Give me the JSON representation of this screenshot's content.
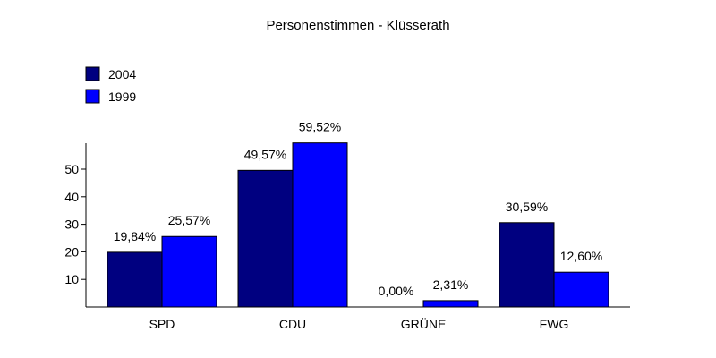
{
  "chart_data": {
    "type": "bar",
    "title": "Personenstimmen - Klüsserath",
    "categories": [
      "SPD",
      "CDU",
      "GRÜNE",
      "FWG"
    ],
    "series": [
      {
        "name": "2004",
        "color": "#000080",
        "values": [
          19.84,
          49.57,
          0.0,
          30.59
        ],
        "labels": [
          "19,84%",
          "49,57%",
          "0,00%",
          "30,59%"
        ]
      },
      {
        "name": "1999",
        "color": "#0000ff",
        "values": [
          25.57,
          59.52,
          2.31,
          12.6
        ],
        "labels": [
          "25,57%",
          "59,52%",
          "2,31%",
          "12,60%"
        ]
      }
    ],
    "yticks": [
      10,
      20,
      30,
      40,
      50
    ],
    "ylim": [
      0,
      60
    ],
    "legend": "top-left",
    "grid": false
  }
}
